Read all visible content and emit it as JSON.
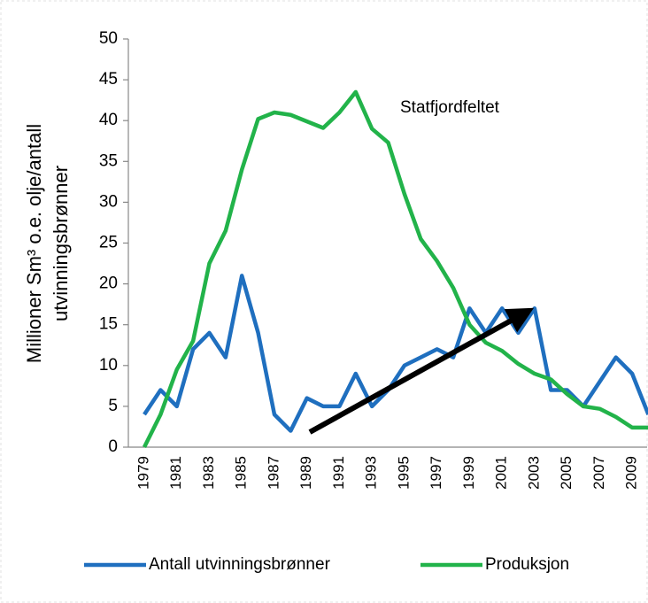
{
  "chart_data": {
    "type": "line",
    "ylabel_lines": [
      "Millioner Sm³ o.e. olje/antall",
      "utvinningsbrønner"
    ],
    "annotation": "Statfjordfeltet",
    "categories": [
      "1979",
      null,
      "1981",
      null,
      "1983",
      null,
      "1985",
      null,
      "1987",
      null,
      "1989",
      null,
      "1991",
      null,
      "1993",
      null,
      "1995",
      null,
      "1997",
      null,
      "1999",
      null,
      "2001",
      null,
      "2003",
      null,
      "2005",
      null,
      "2007",
      null,
      "2009",
      null
    ],
    "series": [
      {
        "name": "Antall utvinningsbrønner",
        "color": "#1f6fbf",
        "values": [
          4,
          7,
          5,
          12,
          14,
          11,
          21,
          14,
          4,
          2,
          6,
          5,
          5,
          9,
          5,
          7,
          10,
          11,
          12,
          11,
          17,
          14,
          17,
          14,
          17,
          7,
          7,
          5,
          8,
          11,
          9,
          4
        ]
      },
      {
        "name": "Produksjon",
        "color": "#22b34a",
        "values": [
          0,
          4,
          9.5,
          13,
          22.5,
          26.5,
          34,
          40.2,
          41,
          40.7,
          39.9,
          39.1,
          41,
          43.5,
          39,
          37.3,
          31,
          25.5,
          22.8,
          19.5,
          15,
          12.8,
          11.8,
          10.2,
          9,
          8.3,
          6.5,
          5,
          4.7,
          3.7,
          2.4,
          2.4
        ]
      }
    ],
    "ylim": [
      0,
      50
    ],
    "yticks": [
      0,
      5,
      10,
      15,
      20,
      25,
      30,
      35,
      40,
      45,
      50
    ],
    "grid": false,
    "legend": "bottom"
  }
}
